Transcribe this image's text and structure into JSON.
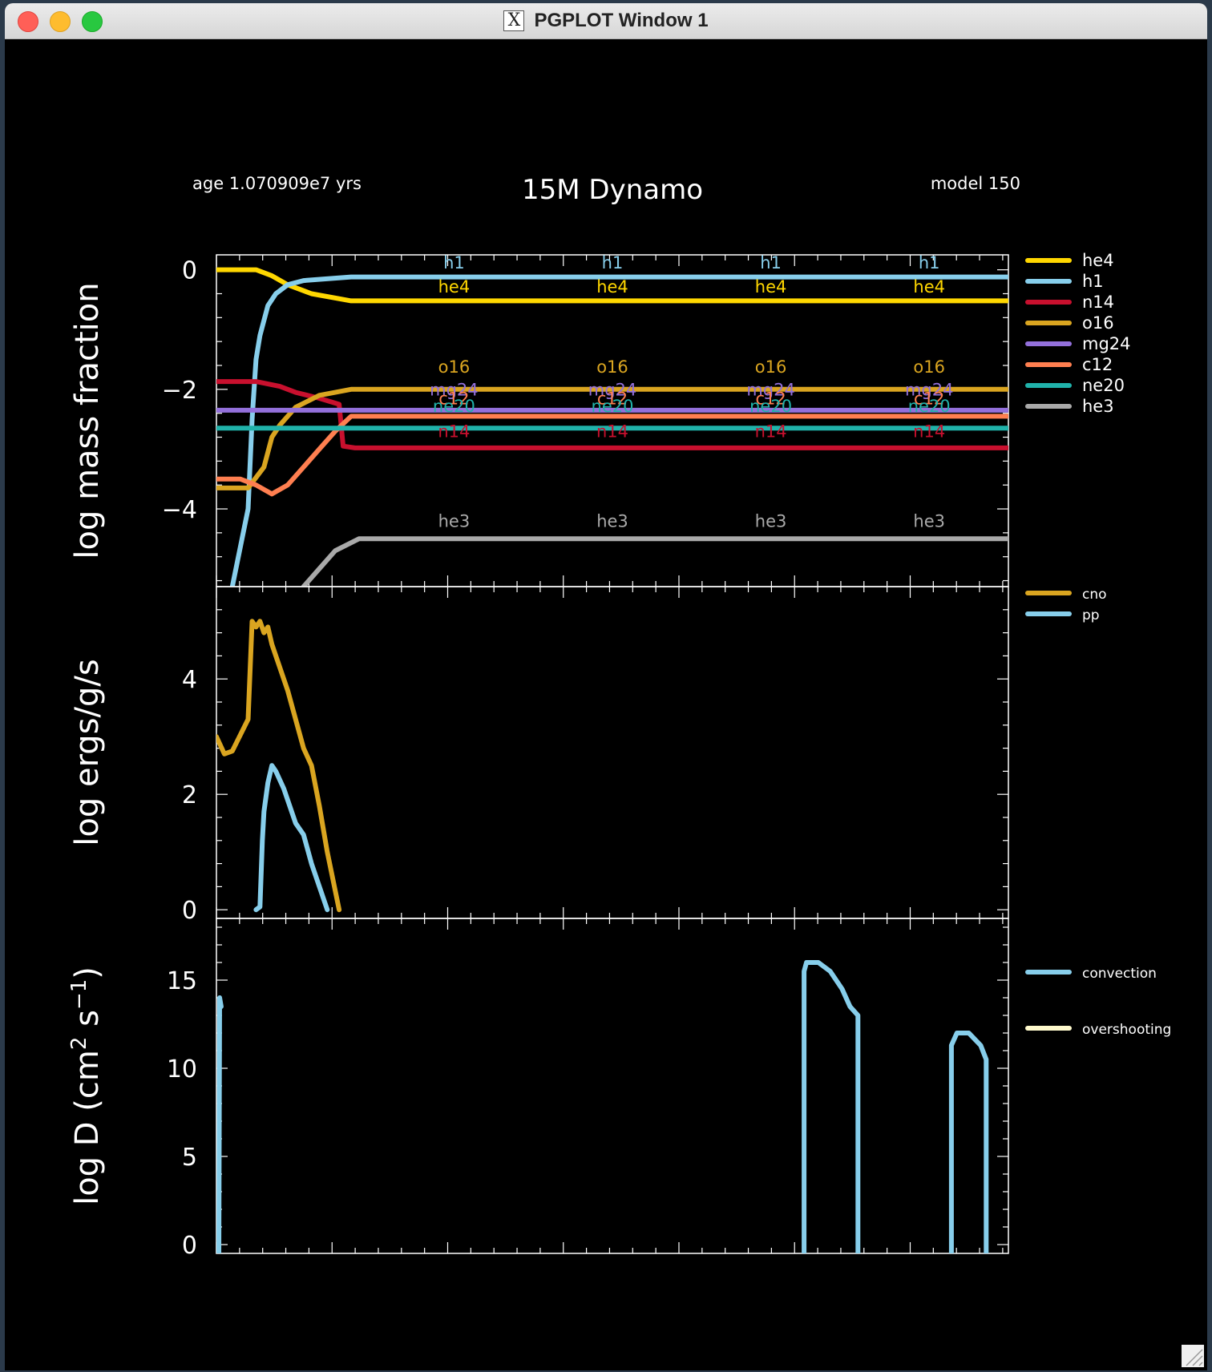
{
  "window": {
    "title": "PGPLOT Window 1",
    "x_icon_glyph": "X",
    "controls": [
      "close",
      "minimize",
      "zoom"
    ]
  },
  "header": {
    "age_text": "age 1.070909e7 yrs",
    "title": "15M Dynamo",
    "model_text": "model 150"
  },
  "chart_data": [
    {
      "type": "line",
      "panel": "abundances",
      "ylabel": "log mass fraction",
      "ylim": [
        -5.3,
        0.25
      ],
      "xlim": [
        0,
        1
      ],
      "y_ticks": [
        "0",
        "−2",
        "−4"
      ],
      "y_tick_values": [
        0,
        -2,
        -4
      ],
      "x_major_ticks": [
        0,
        0.146,
        0.292,
        0.438,
        0.584,
        0.73,
        0.876
      ],
      "legend_position": "right",
      "series": [
        {
          "name": "he4",
          "color": "#ffd700",
          "label_y": -0.38,
          "x": [
            0,
            0.05,
            0.07,
            0.09,
            0.12,
            0.17,
            1
          ],
          "y": [
            0,
            0,
            -0.1,
            -0.25,
            -0.4,
            -0.52,
            -0.52
          ]
        },
        {
          "name": "h1",
          "color": "#87ceeb",
          "label_y": 0.02,
          "x": [
            0.02,
            0.04,
            0.045,
            0.05,
            0.055,
            0.065,
            0.075,
            0.09,
            0.11,
            0.17,
            1
          ],
          "y": [
            -5.3,
            -4.0,
            -2.5,
            -1.5,
            -1.1,
            -0.6,
            -0.4,
            -0.25,
            -0.18,
            -0.12,
            -0.12
          ]
        },
        {
          "name": "n14",
          "color": "#c8102e",
          "label_y": -2.8,
          "x": [
            0,
            0.05,
            0.08,
            0.1,
            0.13,
            0.155,
            0.16,
            0.175,
            1
          ],
          "y": [
            -1.87,
            -1.87,
            -1.95,
            -2.05,
            -2.15,
            -2.25,
            -2.95,
            -2.98,
            -2.98
          ]
        },
        {
          "name": "o16",
          "color": "#daa520",
          "label_y": -1.72,
          "x": [
            0,
            0.04,
            0.06,
            0.07,
            0.08,
            0.1,
            0.13,
            0.17,
            1
          ],
          "y": [
            -3.65,
            -3.65,
            -3.3,
            -2.8,
            -2.6,
            -2.3,
            -2.1,
            -2.0,
            -2.0
          ]
        },
        {
          "name": "mg24",
          "color": "#9370db",
          "label_y": -2.1,
          "x": [
            0,
            1
          ],
          "y": [
            -2.35,
            -2.35
          ]
        },
        {
          "name": "c12",
          "color": "#ff7f50",
          "label_y": -2.25,
          "x": [
            0,
            0.03,
            0.05,
            0.07,
            0.09,
            0.11,
            0.13,
            0.15,
            0.17,
            1
          ],
          "y": [
            -3.5,
            -3.5,
            -3.6,
            -3.75,
            -3.6,
            -3.3,
            -3.0,
            -2.7,
            -2.45,
            -2.45
          ]
        },
        {
          "name": "ne20",
          "color": "#20b2aa",
          "label_y": -2.38,
          "x": [
            0,
            1
          ],
          "y": [
            -2.65,
            -2.65
          ]
        },
        {
          "name": "he3",
          "color": "#a9a9a9",
          "label_y": -4.3,
          "x": [
            0.11,
            0.13,
            0.15,
            0.18,
            1
          ],
          "y": [
            -5.3,
            -5.0,
            -4.7,
            -4.5,
            -4.5
          ]
        }
      ],
      "inline_label_x": [
        0.3,
        0.5,
        0.7,
        0.9
      ]
    },
    {
      "type": "line",
      "panel": "energy",
      "ylabel": "log ergs/g/s",
      "ylim": [
        -0.15,
        5.6
      ],
      "xlim": [
        0,
        1
      ],
      "y_ticks": [
        "0",
        "2",
        "4"
      ],
      "y_tick_values": [
        0,
        2,
        4
      ],
      "x_major_ticks": [
        0,
        0.146,
        0.292,
        0.438,
        0.584,
        0.73,
        0.876
      ],
      "legend_position": "right",
      "series": [
        {
          "name": "cno",
          "color": "#daa520",
          "x": [
            0,
            0.01,
            0.02,
            0.04,
            0.045,
            0.05,
            0.055,
            0.06,
            0.065,
            0.07,
            0.09,
            0.11,
            0.12,
            0.13,
            0.14,
            0.155
          ],
          "y": [
            3.0,
            2.7,
            2.75,
            3.3,
            5.0,
            4.9,
            5.0,
            4.8,
            4.9,
            4.6,
            3.8,
            2.8,
            2.5,
            1.8,
            1.0,
            0
          ]
        },
        {
          "name": "pp",
          "color": "#87ceeb",
          "x": [
            0.05,
            0.055,
            0.058,
            0.06,
            0.065,
            0.07,
            0.075,
            0.085,
            0.1,
            0.11,
            0.12,
            0.14
          ],
          "y": [
            0,
            0.05,
            1.2,
            1.7,
            2.2,
            2.5,
            2.4,
            2.1,
            1.5,
            1.3,
            0.8,
            0
          ]
        }
      ]
    },
    {
      "type": "line",
      "panel": "mixing",
      "ylabel": "log D (cm² s⁻¹)",
      "ylabel_parts": {
        "pre": "log D (cm",
        "sup1": "2",
        "mid": " s",
        "sup2": "−1",
        "post": ")"
      },
      "ylim": [
        -0.5,
        18.5
      ],
      "xlim": [
        0,
        1
      ],
      "y_ticks": [
        "0",
        "5",
        "10",
        "15"
      ],
      "y_tick_values": [
        0,
        5,
        10,
        15
      ],
      "x_major_ticks": [
        0,
        0.146,
        0.292,
        0.438,
        0.584,
        0.73,
        0.876
      ],
      "legend_position": "right",
      "series": [
        {
          "name": "convection",
          "color": "#87ceeb",
          "segments": [
            {
              "x": [
                0.003,
                0.004,
                0.006
              ],
              "y": [
                -1,
                14,
                13.5
              ]
            },
            {
              "x": [
                0.742,
                0.742,
                0.745,
                0.76,
                0.775,
                0.79,
                0.8,
                0.81,
                0.81
              ],
              "y": [
                -1,
                15.5,
                16,
                16,
                15.5,
                14.5,
                13.5,
                13,
                -1
              ]
            },
            {
              "x": [
                0.928,
                0.928,
                0.935,
                0.95,
                0.965,
                0.972,
                0.972
              ],
              "y": [
                -1,
                11.3,
                12,
                12,
                11.3,
                10.5,
                -1
              ]
            }
          ]
        },
        {
          "name": "overshooting",
          "color": "#fffacd",
          "segments": []
        }
      ]
    }
  ]
}
